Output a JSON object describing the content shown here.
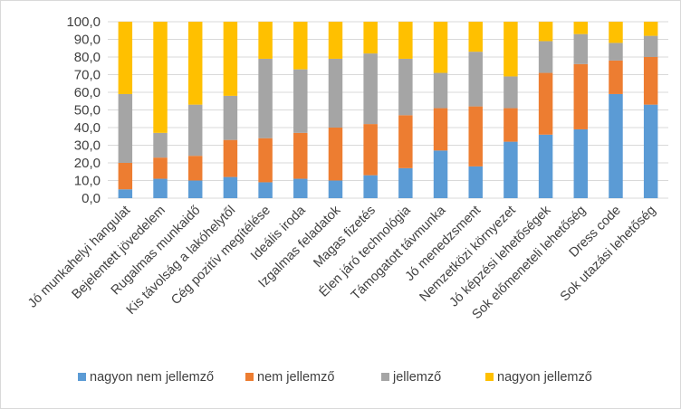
{
  "chart_data": {
    "type": "bar",
    "stacked": true,
    "stack_mode": "percent",
    "title": "",
    "xlabel": "",
    "ylabel": "",
    "ylim": [
      0,
      100
    ],
    "ytick_step": 10,
    "ytick_labels": [
      "0,0",
      "10,0",
      "20,0",
      "30,0",
      "40,0",
      "50,0",
      "60,0",
      "70,0",
      "80,0",
      "90,0",
      "100,0"
    ],
    "grid": true,
    "legend_position": "bottom",
    "categories": [
      "Jó munkahelyi hangulat",
      "Bejelentett jövedelem",
      "Rugalmas munkaidő",
      "Kis távolság a lakóhelytől",
      "Cég pozitív megítélése",
      "Ideális iroda",
      "Izgalmas feladatok",
      "Magas fizetés",
      "Élen járó technológia",
      "Támogatott távmunka",
      "Jó menedzsment",
      "Nemzetközi környezet",
      "Jó képzési lehetőségek",
      "Sok előmeneteli lehetőség",
      "Dress code",
      "Sok utazási lehetőség"
    ],
    "series": [
      {
        "name": "nagyon nem jellemző",
        "color": "#5b9bd5",
        "values": [
          5,
          11,
          10,
          12,
          9,
          11,
          10,
          13,
          17,
          27,
          18,
          32,
          36,
          39,
          59,
          53
        ]
      },
      {
        "name": "nem jellemző",
        "color": "#ed7d31",
        "values": [
          15,
          12,
          14,
          21,
          25,
          26,
          30,
          29,
          30,
          24,
          34,
          19,
          35,
          37,
          19,
          27
        ]
      },
      {
        "name": "jellemző",
        "color": "#a5a5a5",
        "values": [
          39,
          14,
          29,
          25,
          45,
          36,
          39,
          40,
          32,
          20,
          31,
          18,
          18,
          17,
          10,
          12
        ]
      },
      {
        "name": "nagyon jellemző",
        "color": "#ffc000",
        "values": [
          41,
          63,
          47,
          42,
          21,
          27,
          21,
          18,
          21,
          29,
          17,
          31,
          11,
          7,
          12,
          8
        ]
      }
    ]
  }
}
